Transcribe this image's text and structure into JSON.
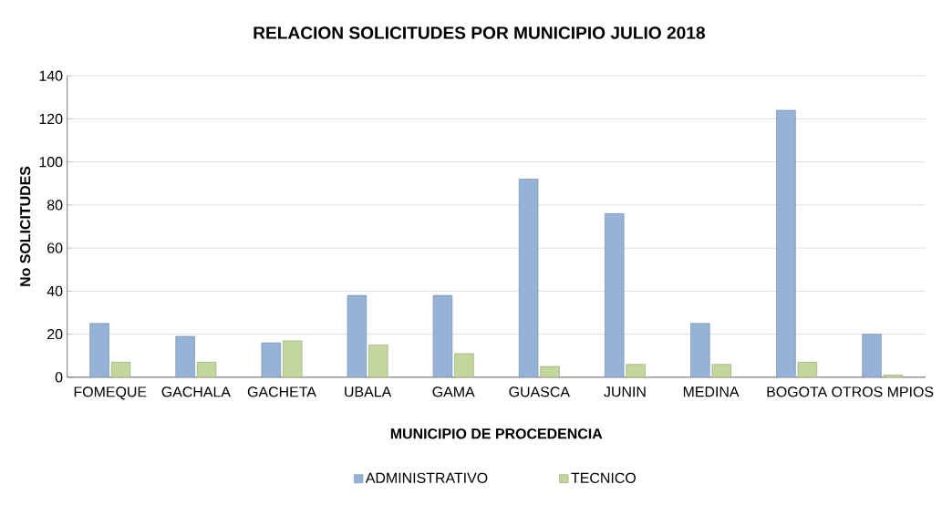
{
  "chart_data": {
    "type": "bar",
    "title": "RELACION SOLICITUDES POR MUNICIPIO JULIO 2018",
    "xlabel": "MUNICIPIO DE PROCEDENCIA",
    "ylabel": "No SOLICITUDES",
    "categories": [
      "FOMEQUE",
      "GACHALA",
      "GACHETA",
      "UBALA",
      "GAMA",
      "GUASCA",
      "JUNIN",
      "MEDINA",
      "BOGOTA",
      "OTROS MPIOS"
    ],
    "series": [
      {
        "name": "ADMINISTRATIVO",
        "color": "#95b3d7",
        "values": [
          25,
          19,
          16,
          38,
          38,
          92,
          76,
          25,
          124,
          20
        ]
      },
      {
        "name": "TECNICO",
        "color": "#c3d69b",
        "values": [
          7,
          7,
          17,
          15,
          11,
          5,
          6,
          6,
          7,
          1
        ]
      }
    ],
    "ylim": [
      0,
      140
    ],
    "yticks": [
      0,
      20,
      40,
      60,
      80,
      100,
      120,
      140
    ],
    "grid": "y",
    "legend": "bottom"
  }
}
